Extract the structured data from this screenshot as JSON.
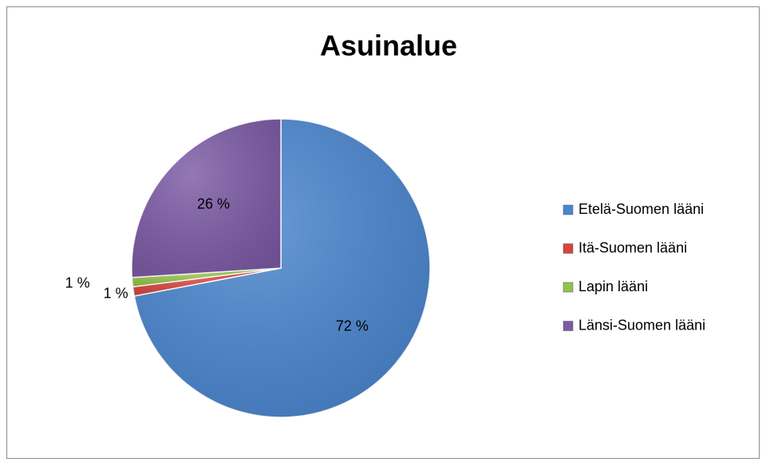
{
  "chart_data": {
    "type": "pie",
    "title": "Asuinalue",
    "categories": [
      "Etelä-Suomen lääni",
      "Itä-Suomen lääni",
      "Lapin lääni",
      "Länsi-Suomen lääni"
    ],
    "values": [
      72,
      1,
      1,
      26
    ],
    "value_labels": [
      "72 %",
      "1 %",
      "1 %",
      "26 %"
    ],
    "colors": [
      "#4a86d0",
      "#d9443c",
      "#94c34a",
      "#7d5ba6"
    ],
    "legend": "right"
  }
}
